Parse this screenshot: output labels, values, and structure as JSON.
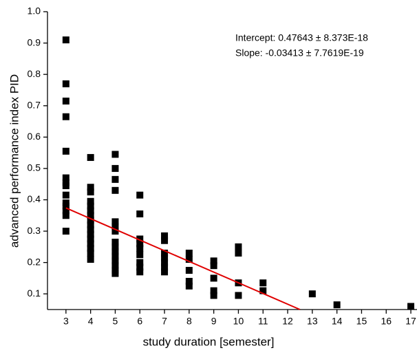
{
  "chart_data": {
    "type": "scatter",
    "xlabel": "study duration [semester]",
    "ylabel": "advanced performance index PID",
    "annotations": [
      "Intercept: 0.47643 ± 8.373E-18",
      "Slope: -0.03413 ± 7.7619E-19"
    ],
    "xlim": [
      2.25,
      17.25
    ],
    "ylim": [
      0.05,
      1.0
    ],
    "xticks": [
      3,
      4,
      5,
      6,
      7,
      8,
      9,
      10,
      11,
      12,
      13,
      14,
      15,
      16,
      17
    ],
    "yticks": [
      0.1,
      0.2,
      0.3,
      0.4,
      0.5,
      0.6,
      0.7,
      0.8,
      0.9,
      {
        "value": 1,
        "label": "1.0"
      }
    ],
    "series": [
      {
        "color": "#000000",
        "x": [
          3,
          3,
          3,
          3,
          3,
          3,
          3,
          3,
          3,
          3,
          3,
          3,
          3,
          3,
          4,
          4,
          4,
          4,
          4,
          4,
          4,
          4,
          4,
          4,
          4,
          4,
          4,
          4,
          4,
          4,
          5,
          5,
          5,
          5,
          5,
          5,
          5,
          5,
          5,
          5,
          5,
          5,
          5,
          5,
          5,
          6,
          6,
          6,
          6,
          6,
          6,
          6,
          6,
          6,
          7,
          7,
          7,
          7,
          7,
          7,
          7,
          8,
          8,
          8,
          8,
          8,
          9,
          9,
          9,
          9,
          9,
          10,
          10,
          10,
          10,
          11,
          11,
          13,
          14,
          17
        ],
        "values": [
          0.91,
          0.77,
          0.715,
          0.665,
          0.555,
          0.47,
          0.455,
          0.445,
          0.415,
          0.39,
          0.38,
          0.365,
          0.35,
          0.3,
          0.535,
          0.44,
          0.425,
          0.395,
          0.38,
          0.365,
          0.35,
          0.335,
          0.32,
          0.305,
          0.29,
          0.275,
          0.26,
          0.245,
          0.23,
          0.21,
          0.545,
          0.5,
          0.465,
          0.43,
          0.33,
          0.315,
          0.3,
          0.265,
          0.25,
          0.235,
          0.22,
          0.205,
          0.19,
          0.175,
          0.165,
          0.415,
          0.355,
          0.275,
          0.26,
          0.245,
          0.225,
          0.2,
          0.185,
          0.17,
          0.285,
          0.27,
          0.23,
          0.215,
          0.2,
          0.185,
          0.17,
          0.23,
          0.21,
          0.175,
          0.14,
          0.125,
          0.205,
          0.19,
          0.15,
          0.11,
          0.095,
          0.25,
          0.23,
          0.135,
          0.095,
          0.135,
          0.11,
          0.1,
          0.065,
          0.06
        ]
      },
      {
        "type": "line",
        "color": "#e00000",
        "x": [
          3,
          12.5
        ],
        "values": [
          0.374,
          0.05
        ]
      }
    ]
  }
}
